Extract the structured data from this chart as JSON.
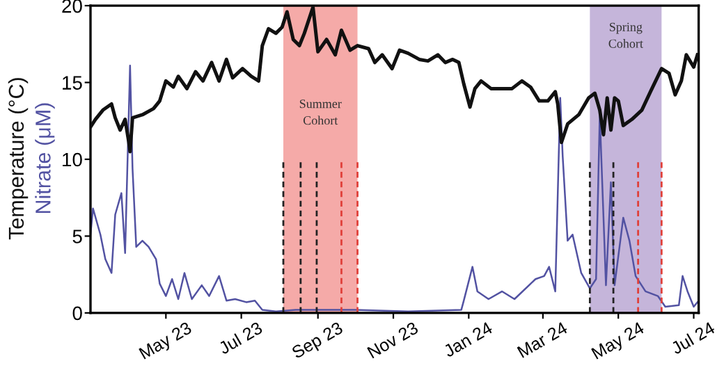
{
  "chart_data": {
    "type": "line",
    "xlim": [
      "2023-03-01",
      "2024-07-05"
    ],
    "xticks": [
      {
        "value": "2023-05-01",
        "label": "May 23"
      },
      {
        "value": "2023-07-01",
        "label": "Jul 23"
      },
      {
        "value": "2023-09-01",
        "label": "Sep 23"
      },
      {
        "value": "2023-11-01",
        "label": "Nov 23"
      },
      {
        "value": "2024-01-01",
        "label": "Jan 24"
      },
      {
        "value": "2024-03-01",
        "label": "Mar 24"
      },
      {
        "value": "2024-05-01",
        "label": "May 24"
      },
      {
        "value": "2024-07-01",
        "label": "Jul 24"
      }
    ],
    "ylim": [
      0,
      20
    ],
    "yticks": [
      0,
      5,
      10,
      15,
      20
    ],
    "grid": false,
    "legend": false,
    "bands": [
      {
        "axis": "x",
        "from": "2023-08-04",
        "to": "2023-10-03",
        "color": "#f5aaa8",
        "label": "Summer\nCohort"
      },
      {
        "axis": "x",
        "from": "2024-04-08",
        "to": "2024-06-05",
        "color": "#c5b5da",
        "label": "Spring\nCohort"
      }
    ],
    "series": [
      {
        "name": "Temperature (°C)",
        "color": "#111111",
        "x": [
          "2023-03-01",
          "2023-03-05",
          "2023-03-11",
          "2023-03-18",
          "2023-03-21",
          "2023-03-25",
          "2023-03-29",
          "2023-04-01",
          "2023-04-02",
          "2023-04-04",
          "2023-04-12",
          "2023-04-21",
          "2023-04-26",
          "2023-05-01",
          "2023-05-07",
          "2023-05-11",
          "2023-05-18",
          "2023-05-25",
          "2023-05-31",
          "2023-06-07",
          "2023-06-13",
          "2023-06-19",
          "2023-06-24",
          "2023-07-02",
          "2023-07-09",
          "2023-07-15",
          "2023-07-18",
          "2023-07-23",
          "2023-07-29",
          "2023-08-03",
          "2023-08-07",
          "2023-08-12",
          "2023-08-17",
          "2023-08-21",
          "2023-08-28",
          "2023-09-01",
          "2023-09-08",
          "2023-09-15",
          "2023-09-20",
          "2023-09-27",
          "2023-10-03",
          "2023-10-12",
          "2023-10-17",
          "2023-10-23",
          "2023-10-31",
          "2023-11-06",
          "2023-11-13",
          "2023-11-22",
          "2023-11-29",
          "2023-12-07",
          "2023-12-13",
          "2023-12-19",
          "2023-12-24",
          "2023-12-28",
          "2024-01-02",
          "2024-01-06",
          "2024-01-11",
          "2024-01-19",
          "2024-01-28",
          "2024-02-05",
          "2024-02-13",
          "2024-02-20",
          "2024-02-27",
          "2024-03-05",
          "2024-03-11",
          "2024-03-13",
          "2024-03-16",
          "2024-03-21",
          "2024-03-30",
          "2024-04-07",
          "2024-04-12",
          "2024-04-16",
          "2024-04-19",
          "2024-04-22",
          "2024-04-25",
          "2024-04-28",
          "2024-05-01",
          "2024-05-05",
          "2024-05-12",
          "2024-05-20",
          "2024-05-27",
          "2024-06-05",
          "2024-06-11",
          "2024-06-16",
          "2024-06-21",
          "2024-06-25",
          "2024-07-01",
          "2024-07-04"
        ],
        "values": [
          12.1,
          12.6,
          13.2,
          13.6,
          12.7,
          11.9,
          12.6,
          11.1,
          10.5,
          12.7,
          12.9,
          13.3,
          13.8,
          15.1,
          14.7,
          15.4,
          14.6,
          15.7,
          15.1,
          16.3,
          15.1,
          16.5,
          15.3,
          15.9,
          15.4,
          15.1,
          17.4,
          18.5,
          18.2,
          18.6,
          19.6,
          17.8,
          17.4,
          18.2,
          19.9,
          17.0,
          17.8,
          16.8,
          18.4,
          17.1,
          17.4,
          17.2,
          16.3,
          16.8,
          15.9,
          17.1,
          16.9,
          16.5,
          16.4,
          16.8,
          16.3,
          16.5,
          16.3,
          14.9,
          13.4,
          14.6,
          15.1,
          14.6,
          14.6,
          14.6,
          15.1,
          14.7,
          13.8,
          13.8,
          14.4,
          13.6,
          11.1,
          12.3,
          12.9,
          14.0,
          14.3,
          13.2,
          11.6,
          14.0,
          11.9,
          14.0,
          13.8,
          12.2,
          12.6,
          13.2,
          14.4,
          15.9,
          15.6,
          14.2,
          15.1,
          16.8,
          16.0,
          16.8
        ]
      },
      {
        "name": "Nitrate (μM)",
        "color": "#5252a2",
        "x": [
          "2023-03-01",
          "2023-03-03",
          "2023-03-09",
          "2023-03-13",
          "2023-03-18",
          "2023-03-21",
          "2023-03-26",
          "2023-03-29",
          "2023-04-02",
          "2023-04-04",
          "2023-04-07",
          "2023-04-12",
          "2023-04-17",
          "2023-04-23",
          "2023-04-26",
          "2023-05-01",
          "2023-05-06",
          "2023-05-11",
          "2023-05-16",
          "2023-05-22",
          "2023-05-30",
          "2023-06-05",
          "2023-06-13",
          "2023-06-19",
          "2023-06-26",
          "2023-07-05",
          "2023-07-12",
          "2023-07-18",
          "2023-07-29",
          "2023-08-14",
          "2023-08-30",
          "2023-10-01",
          "2023-11-13",
          "2023-12-26",
          "2023-12-28",
          "2024-01-04",
          "2024-01-08",
          "2024-01-17",
          "2024-01-28",
          "2024-02-07",
          "2024-02-24",
          "2024-03-02",
          "2024-03-06",
          "2024-03-11",
          "2024-03-15",
          "2024-03-17",
          "2024-03-21",
          "2024-03-25",
          "2024-04-01",
          "2024-04-08",
          "2024-04-13",
          "2024-04-16",
          "2024-04-21",
          "2024-04-25",
          "2024-04-28",
          "2024-05-05",
          "2024-05-10",
          "2024-05-15",
          "2024-05-23",
          "2024-06-02",
          "2024-06-08",
          "2024-06-19",
          "2024-06-22",
          "2024-06-26",
          "2024-07-01",
          "2024-07-04"
        ],
        "values": [
          5.1,
          6.8,
          5.1,
          3.5,
          2.6,
          6.4,
          7.8,
          3.9,
          16.1,
          9.4,
          4.3,
          4.7,
          4.3,
          3.5,
          1.9,
          1.1,
          2.2,
          0.9,
          2.6,
          0.9,
          1.8,
          1.1,
          2.4,
          0.8,
          0.9,
          0.7,
          0.8,
          0.2,
          0.1,
          0.2,
          0.2,
          0.2,
          0.1,
          0.2,
          0.8,
          3.0,
          1.4,
          0.9,
          1.4,
          0.9,
          2.2,
          2.4,
          3.0,
          1.4,
          14.0,
          10.2,
          4.7,
          5.1,
          2.6,
          1.6,
          2.2,
          12.9,
          1.8,
          8.5,
          1.8,
          6.2,
          4.7,
          2.4,
          1.4,
          1.1,
          0.4,
          0.5,
          2.4,
          1.4,
          0.4,
          0.7
        ]
      },
      {
        "color": "#222222",
        "line_style": "dashed",
        "x": [
          "2023-08-04",
          "2023-08-04"
        ],
        "values": [
          0,
          10
        ]
      },
      {
        "color": "#222222",
        "line_style": "dashed",
        "x": [
          "2023-08-18",
          "2023-08-18"
        ],
        "values": [
          0,
          10
        ]
      },
      {
        "color": "#222222",
        "line_style": "dashed",
        "x": [
          "2023-08-31",
          "2023-08-31"
        ],
        "values": [
          0,
          10
        ]
      },
      {
        "color": "#e0403a",
        "line_style": "dashed",
        "x": [
          "2023-09-20",
          "2023-09-20"
        ],
        "values": [
          0,
          10
        ]
      },
      {
        "color": "#e0403a",
        "line_style": "dashed",
        "x": [
          "2023-10-03",
          "2023-10-03"
        ],
        "values": [
          0,
          10
        ]
      },
      {
        "color": "#222222",
        "line_style": "dashed",
        "x": [
          "2024-04-08",
          "2024-04-08"
        ],
        "values": [
          0,
          10
        ]
      },
      {
        "color": "#222222",
        "line_style": "dashed",
        "x": [
          "2024-04-27",
          "2024-04-27"
        ],
        "values": [
          0,
          10
        ]
      },
      {
        "color": "#e0403a",
        "line_style": "dashed",
        "x": [
          "2024-05-17",
          "2024-05-17"
        ],
        "values": [
          0,
          10
        ]
      },
      {
        "color": "#e0403a",
        "line_style": "dashed",
        "x": [
          "2024-06-05",
          "2024-06-05"
        ],
        "values": [
          0,
          10
        ]
      }
    ]
  }
}
